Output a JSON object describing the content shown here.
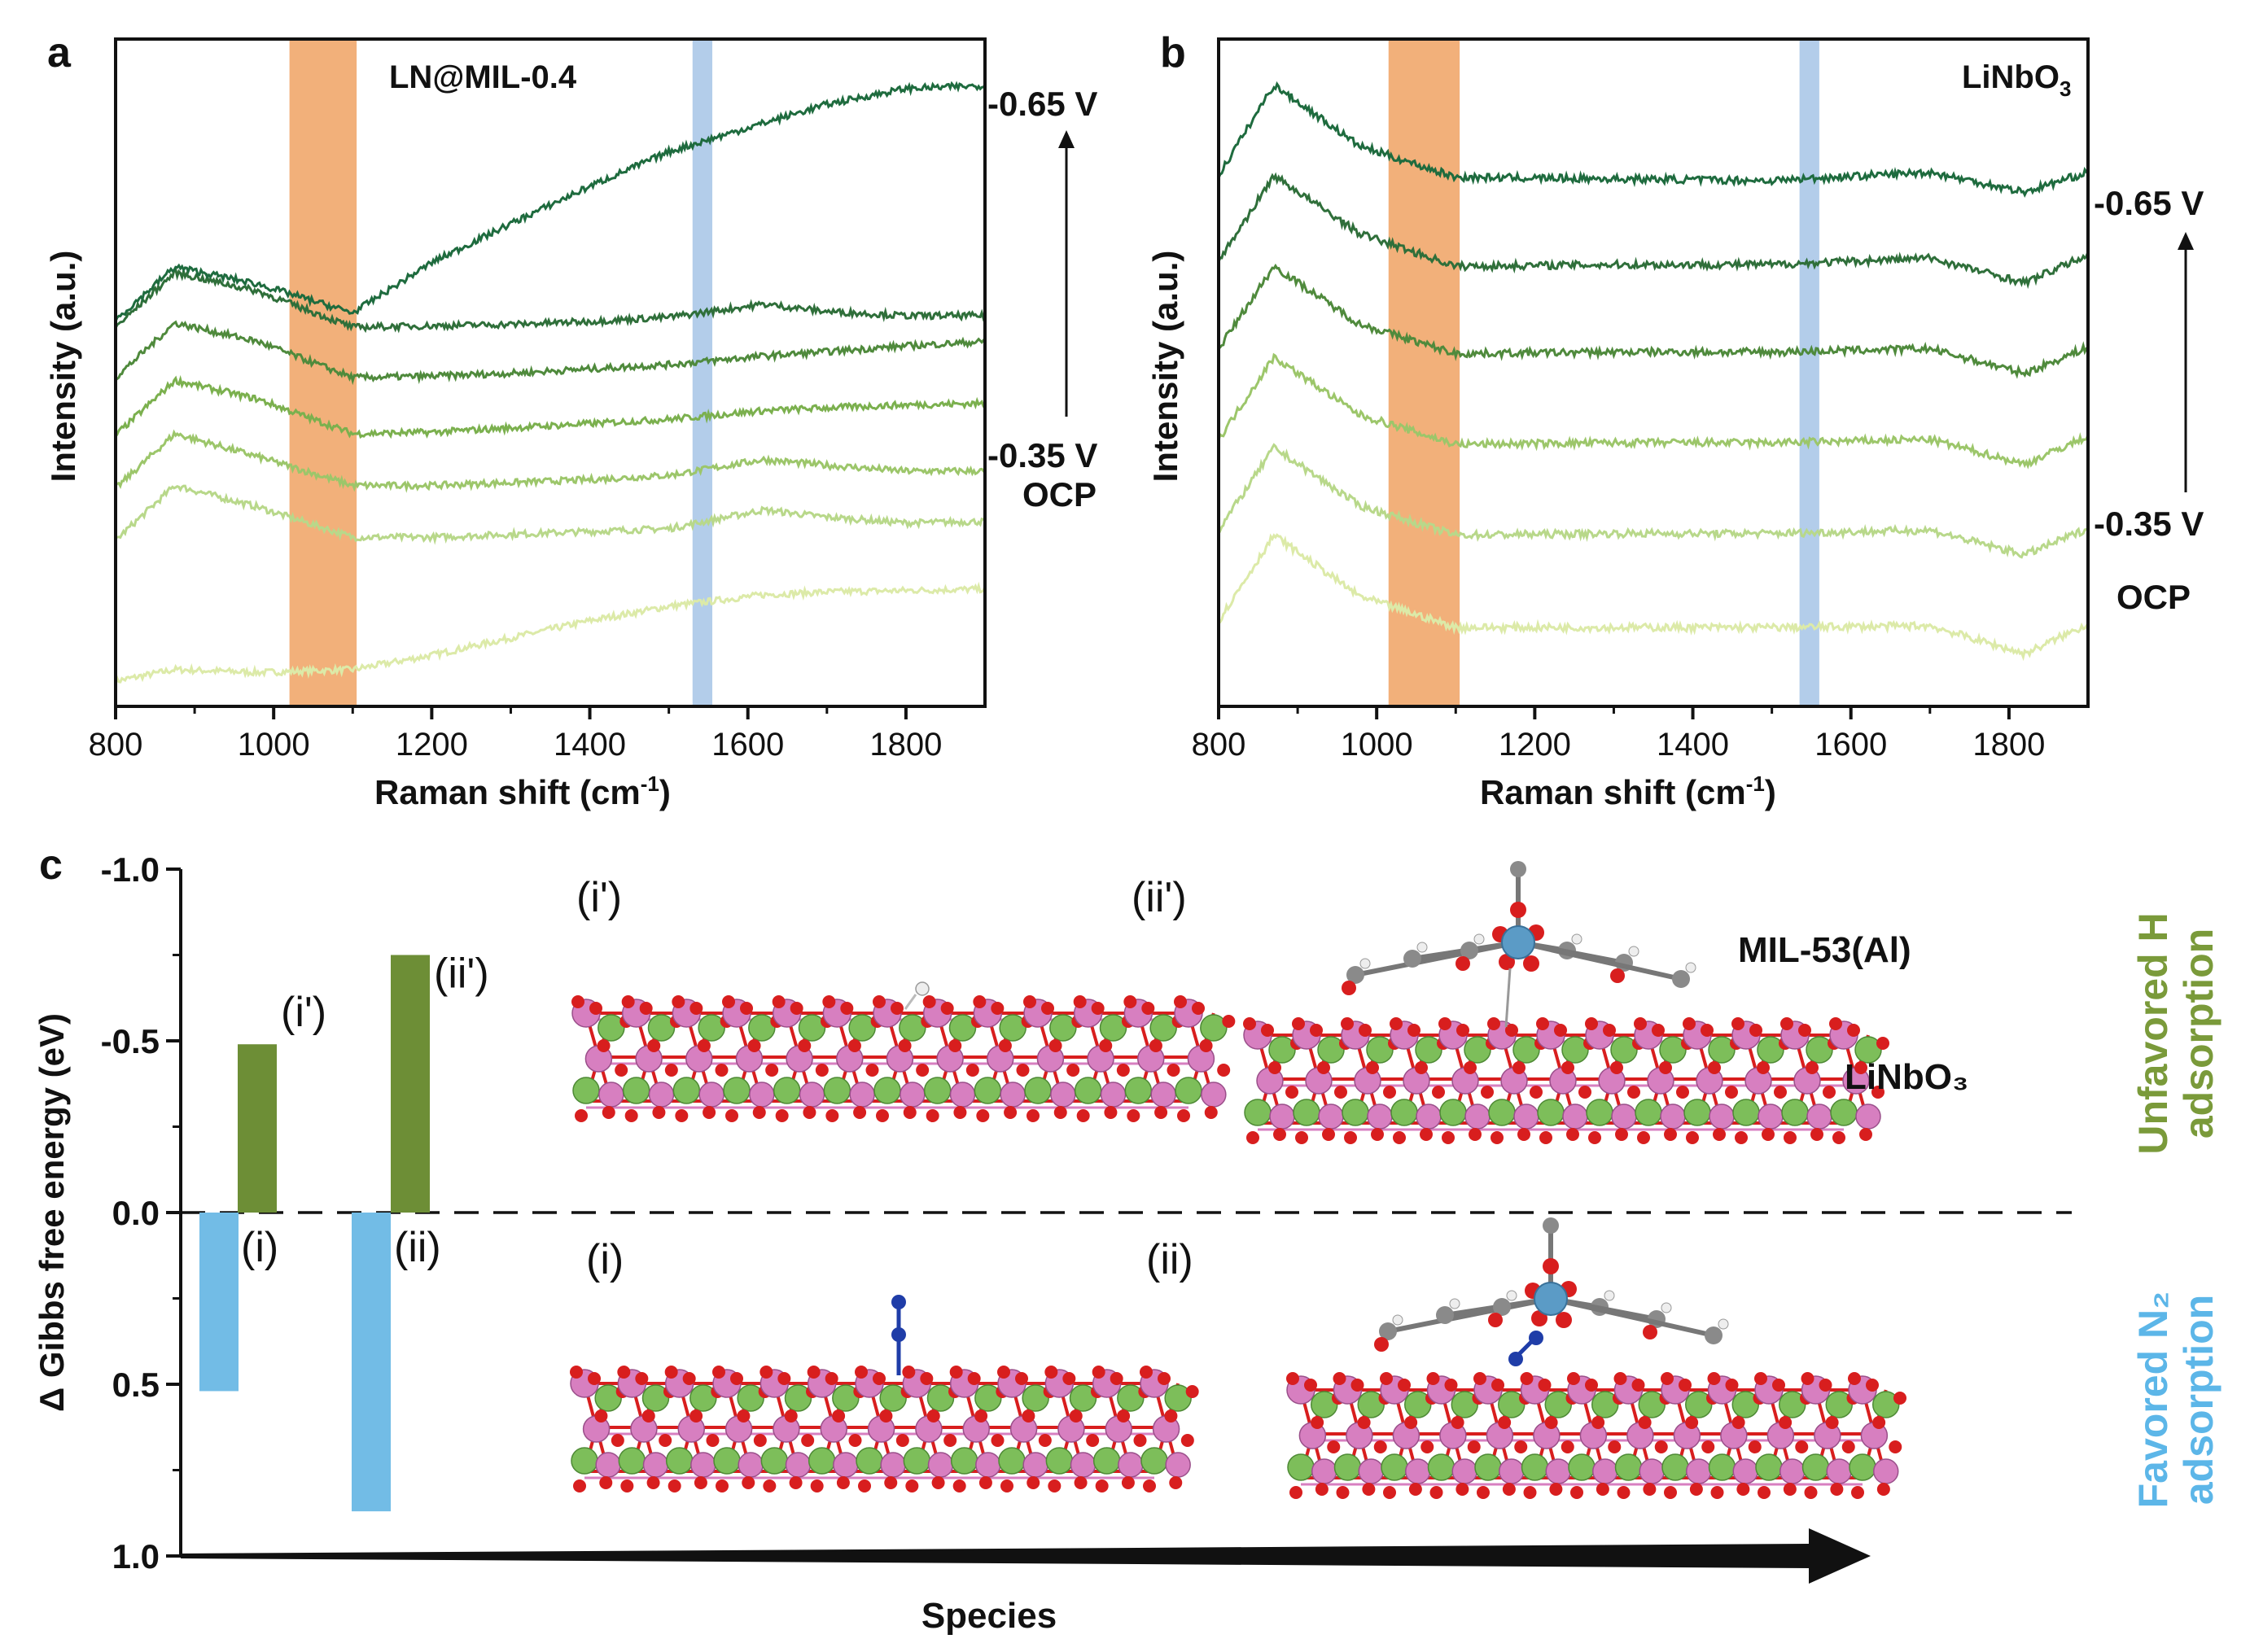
{
  "colors": {
    "orange_band": "#f2b07a",
    "blue_band": "#b3cdea",
    "bar_green": "#6d8e36",
    "bar_blue": "#72bce6",
    "label_green": "#7a9a3a",
    "label_blue": "#5cb6e8",
    "series_greens": [
      "#dceaa8",
      "#b8d88a",
      "#9cc66a",
      "#7bb04e",
      "#4f8a3c",
      "#2f6f3a",
      "#1e6b3e"
    ],
    "atom_pink": "#d77fc0",
    "atom_green": "#7dbe5a",
    "atom_red": "#d81e1e",
    "atom_grey": "#8a8a8a",
    "atom_blue": "#1f3da8",
    "atom_al": "#5b9bc6"
  },
  "panel_a": {
    "letter": "a",
    "sample_label": "LN@MIL-0.4",
    "xlabel": "Raman shift (cm",
    "xlabel_sup": "-1",
    "xlabel_end": ")",
    "ylabel": "Intensity (a.u.)",
    "xticks": [
      "800",
      "1000",
      "1200",
      "1400",
      "1600",
      "1800"
    ],
    "top_label": "-0.65 V",
    "bottom_label": "-0.35 V",
    "ocp_label": "OCP"
  },
  "panel_b": {
    "letter": "b",
    "sample_label": "LiNbO",
    "sample_sub": "3",
    "xlabel": "Raman shift (cm",
    "xlabel_sup": "-1",
    "xlabel_end": ")",
    "ylabel": "Intensity (a.u.)",
    "xticks": [
      "800",
      "1000",
      "1200",
      "1400",
      "1600",
      "1800"
    ],
    "top_label": "-0.65 V",
    "bottom_label": "-0.35 V",
    "ocp_label": "OCP"
  },
  "panel_c": {
    "letter": "c",
    "ylabel": "Δ Gibbs free energy (eV)",
    "yticks": [
      "1.0",
      "0.5",
      "0.0",
      "-0.5",
      "-1.0"
    ],
    "xlabel": "Species",
    "bar_labels": [
      "(i')",
      "(ii')",
      "(i)",
      "(ii)"
    ],
    "struct_labels": [
      "(i')",
      "(ii')",
      "(i)",
      "(ii)"
    ],
    "mil_label": "MIL-53(Al)",
    "linbo_label": "LiNbO₃",
    "side_green_line1": "Unfavored H",
    "side_green_line2": "adsorption",
    "side_blue_line1": "Favored N₂",
    "side_blue_line2": "adsorption"
  },
  "chart_data": [
    {
      "type": "line",
      "panel": "a",
      "title": "LN@MIL-0.4",
      "xlabel": "Raman shift (cm-1)",
      "ylabel": "Intensity (a.u.)",
      "xlim": [
        800,
        1900
      ],
      "xticks": [
        800,
        1000,
        1200,
        1400,
        1600,
        1800
      ],
      "highlight_bands": [
        [
          1020,
          1105
        ],
        [
          1530,
          1555
        ]
      ],
      "peaks": [
        875,
        980,
        1620
      ],
      "series": [
        {
          "label": "OCP",
          "x": [
            800,
            875,
            980,
            1100,
            1200,
            1300,
            1400,
            1500,
            1620,
            1700,
            1800,
            1900
          ],
          "values": [
            0.04,
            0.12,
            0.1,
            0.12,
            0.22,
            0.34,
            0.46,
            0.56,
            0.64,
            0.66,
            0.67,
            0.68
          ]
        },
        {
          "label": "-0.35 V",
          "x": [
            800,
            875,
            980,
            1100,
            1200,
            1300,
            1400,
            1500,
            1620,
            1700,
            1800,
            1900
          ],
          "values": [
            1.02,
            1.4,
            1.25,
            1.04,
            1.04,
            1.06,
            1.08,
            1.1,
            1.23,
            1.18,
            1.14,
            1.15
          ]
        },
        {
          "label": "",
          "x": [
            800,
            875,
            980,
            1100,
            1200,
            1300,
            1400,
            1500,
            1620,
            1700,
            1800,
            1900
          ],
          "values": [
            1.38,
            1.76,
            1.6,
            1.4,
            1.4,
            1.42,
            1.44,
            1.47,
            1.58,
            1.54,
            1.5,
            1.5
          ]
        },
        {
          "label": "",
          "x": [
            800,
            875,
            980,
            1100,
            1200,
            1300,
            1400,
            1500,
            1620,
            1700,
            1800,
            1900
          ],
          "values": [
            1.75,
            2.13,
            2.0,
            1.76,
            1.77,
            1.8,
            1.83,
            1.86,
            1.92,
            1.94,
            1.96,
            1.97
          ]
        },
        {
          "label": "",
          "x": [
            800,
            875,
            980,
            1100,
            1200,
            1300,
            1400,
            1500,
            1620,
            1700,
            1800,
            1900
          ],
          "values": [
            2.15,
            2.53,
            2.4,
            2.15,
            2.16,
            2.18,
            2.21,
            2.24,
            2.3,
            2.33,
            2.37,
            2.4
          ]
        },
        {
          "label": "",
          "x": [
            800,
            875,
            980,
            1100,
            1200,
            1300,
            1400,
            1500,
            1620,
            1700,
            1800,
            1900
          ],
          "values": [
            2.5,
            2.88,
            2.75,
            2.5,
            2.51,
            2.52,
            2.54,
            2.57,
            2.66,
            2.61,
            2.58,
            2.58
          ]
        },
        {
          "label": "-0.65 V",
          "x": [
            800,
            875,
            980,
            1100,
            1200,
            1300,
            1400,
            1500,
            1620,
            1700,
            1800,
            1900
          ],
          "values": [
            2.55,
            2.92,
            2.8,
            2.6,
            2.95,
            3.22,
            3.48,
            3.72,
            3.92,
            4.05,
            4.16,
            4.18
          ]
        }
      ]
    },
    {
      "type": "line",
      "panel": "b",
      "title": "LiNbO3",
      "xlabel": "Raman shift (cm-1)",
      "ylabel": "Intensity (a.u.)",
      "xlim": [
        800,
        1900
      ],
      "xticks": [
        800,
        1000,
        1200,
        1400,
        1600,
        1800
      ],
      "highlight_bands": [
        [
          1015,
          1105
        ],
        [
          1535,
          1560
        ]
      ],
      "peaks": [
        870,
        978,
        1820
      ],
      "series": [
        {
          "label": "OCP",
          "x": [
            800,
            870,
            978,
            1100,
            1300,
            1500,
            1700,
            1820,
            1900
          ],
          "values": [
            0.4,
            0.92,
            0.55,
            0.36,
            0.36,
            0.36,
            0.37,
            0.2,
            0.38
          ]
        },
        {
          "label": "-0.35 V",
          "x": [
            800,
            870,
            978,
            1100,
            1300,
            1500,
            1700,
            1820,
            1900
          ],
          "values": [
            0.95,
            1.45,
            1.1,
            0.92,
            0.93,
            0.93,
            0.95,
            0.8,
            0.96
          ]
        },
        {
          "label": "",
          "x": [
            800,
            870,
            978,
            1100,
            1300,
            1500,
            1700,
            1820,
            1900
          ],
          "values": [
            1.5,
            2.0,
            1.65,
            1.47,
            1.48,
            1.48,
            1.5,
            1.35,
            1.52
          ]
        },
        {
          "label": "",
          "x": [
            800,
            870,
            978,
            1100,
            1300,
            1500,
            1700,
            1820,
            1900
          ],
          "values": [
            2.05,
            2.55,
            2.2,
            2.02,
            2.03,
            2.03,
            2.05,
            1.9,
            2.06
          ]
        },
        {
          "label": "",
          "x": [
            800,
            870,
            978,
            1100,
            1300,
            1500,
            1700,
            1820,
            1900
          ],
          "values": [
            2.58,
            3.1,
            2.75,
            2.55,
            2.56,
            2.56,
            2.6,
            2.45,
            2.62
          ]
        },
        {
          "label": "-0.65 V",
          "x": [
            800,
            870,
            978,
            1100,
            1300,
            1500,
            1700,
            1820,
            1900
          ],
          "values": [
            3.1,
            3.65,
            3.28,
            3.09,
            3.08,
            3.07,
            3.12,
            3.0,
            3.12
          ]
        }
      ]
    },
    {
      "type": "bar",
      "panel": "c",
      "ylabel": "Δ Gibbs free energy (eV)",
      "xlabel": "Species",
      "ylim": [
        -1.0,
        1.0
      ],
      "yticks": [
        -1.0,
        -0.5,
        0.0,
        0.5,
        1.0
      ],
      "series": [
        {
          "name": "Unfavored H adsorption",
          "categories": [
            "(i')",
            "(ii')"
          ],
          "values": [
            0.49,
            0.75
          ]
        },
        {
          "name": "Favored N2 adsorption",
          "categories": [
            "(i)",
            "(ii)"
          ],
          "values": [
            -0.52,
            -0.87
          ]
        }
      ]
    }
  ]
}
